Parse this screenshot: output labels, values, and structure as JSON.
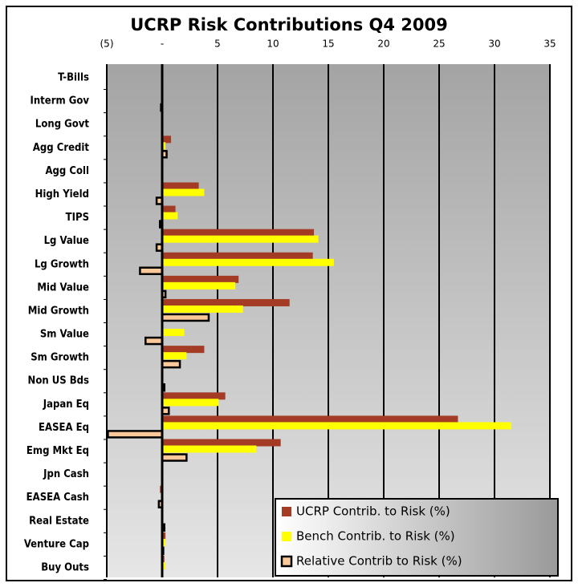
{
  "chart_data": {
    "type": "barh",
    "title": "UCRP Risk Contributions Q4 2009",
    "categories": [
      "T-Bills",
      "Interm Gov",
      "Long Govt",
      "Agg Credit",
      "Agg Coll",
      "High Yield",
      "TIPS",
      "Lg Value",
      "Lg Growth",
      "Mid Value",
      "Mid Growth",
      "Sm Value",
      "Sm Growth",
      "Non US Bds",
      "Japan Eq",
      "EASEA Eq",
      "Emg Mkt Eq",
      "Jpn Cash",
      "EASEA Cash",
      "Real Estate",
      "Venture Cap",
      "Buy Outs"
    ],
    "series": [
      {
        "name": "UCRP Contrib. to Risk (%)",
        "color": "#a33b25",
        "values": [
          0,
          -0.1,
          0.1,
          0.8,
          0,
          3.3,
          1.2,
          13.7,
          13.6,
          6.9,
          11.5,
          0.1,
          3.8,
          0.1,
          5.7,
          26.7,
          10.7,
          0,
          -0.2,
          0.1,
          0.3,
          0.2
        ]
      },
      {
        "name": "Bench Contrib. to Risk (%)",
        "color": "#ffff00",
        "values": [
          0,
          0,
          0.1,
          0.3,
          0,
          3.8,
          1.4,
          14.1,
          15.5,
          6.6,
          7.3,
          2.0,
          2.2,
          0,
          5.1,
          31.5,
          8.5,
          0,
          0,
          0.1,
          0.3,
          0.3
        ]
      },
      {
        "name": "Relative Contrib to Risk (%)",
        "color": "#fbc89a",
        "values": [
          0,
          -0.1,
          0,
          0.4,
          0,
          -0.5,
          -0.2,
          -0.5,
          -2.0,
          0.3,
          4.2,
          -1.5,
          1.6,
          0.2,
          0.6,
          -4.9,
          2.2,
          0,
          -0.3,
          0.2,
          0.1,
          0
        ]
      }
    ],
    "xlim": [
      -5,
      35
    ],
    "xticks": [
      {
        "value": -5,
        "label": "(5)"
      },
      {
        "value": 0,
        "label": "-"
      },
      5,
      10,
      15,
      20,
      25,
      30,
      35
    ],
    "grid": true,
    "legend": "lower right"
  }
}
